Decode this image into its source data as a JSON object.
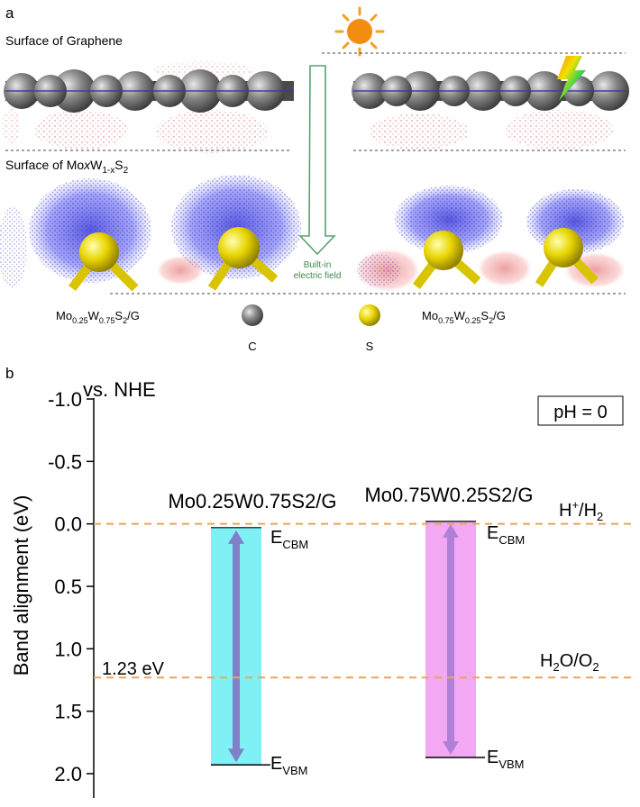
{
  "panel_a": {
    "label": "a",
    "graphene_surface": "Surface of Graphene",
    "moxw_surface": {
      "base": "Surface of Mo",
      "x": "x",
      "w": "W",
      "sub": "1-x",
      "s": "S",
      "two": "2"
    },
    "field_label": [
      "Built-in",
      "electric field"
    ],
    "legend_left": {
      "mo": "Mo",
      "mo_sub": "0.25",
      "w": "W",
      "w_sub": "0.75",
      "s": "S",
      "s_sub": "2",
      "g": "/G"
    },
    "legend_right": {
      "mo": "Mo",
      "mo_sub": "0.75",
      "w": "W",
      "w_sub": "0.25",
      "s": "S",
      "s_sub": "2",
      "g": "/G"
    },
    "atom_c": "C",
    "atom_s": "S"
  },
  "panel_b": {
    "label": "b",
    "ylabel": "Band alignment (eV)",
    "ref_label": "vs. NHE",
    "ph_label": "pH = 0",
    "h_label": {
      "h": "H",
      "sup": "+",
      "rest": "/H",
      "sub": "2"
    },
    "o_label": {
      "a": "H",
      "sub1": "2",
      "b": "O/O",
      "sub2": "2"
    },
    "gap_label": "1.23 eV",
    "cbm": {
      "e": "E",
      "sub": "CBM"
    },
    "vbm": {
      "e": "E",
      "sub": "VBM"
    }
  },
  "chart_data": {
    "type": "bar",
    "ylabel": "Band alignment (eV)",
    "ylim": [
      -1.0,
      2.0
    ],
    "inverted_axis": true,
    "yticks": [
      "-1.0",
      "-0.5",
      "0.0",
      "0.5",
      "1.0",
      "1.5",
      "2.0"
    ],
    "reference_lines": [
      {
        "label": "H+/H2",
        "value": 0.0
      },
      {
        "label": "H2O/O2",
        "value": 1.23
      }
    ],
    "series": [
      {
        "name": "Mo0.25W0.75S2/G",
        "cbm": 0.03,
        "vbm": 1.93,
        "color": "#7ff0f3"
      },
      {
        "name": "Mo0.75W0.25S2/G",
        "cbm": -0.02,
        "vbm": 1.87,
        "color": "#f2a8f2"
      }
    ],
    "colors": {
      "ref_line": "#e8a55a",
      "arrow": "#8080c8",
      "arrow_pink": "#b080d8"
    }
  }
}
